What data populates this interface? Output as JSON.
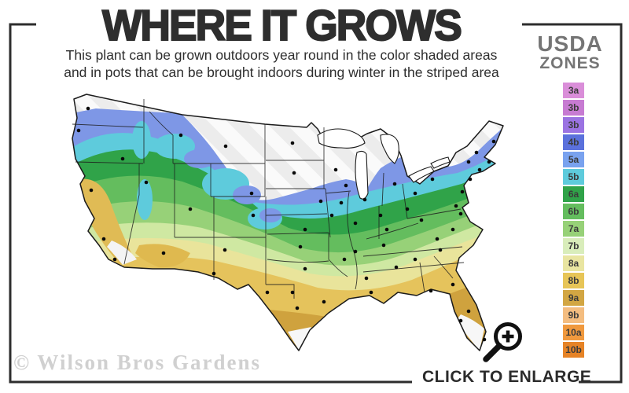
{
  "header": {
    "title": "WHERE IT GROWS",
    "subtitle_line1": "This plant can be grown outdoors year round in the color shaded areas",
    "subtitle_line2": "and in pots that can be brought indoors during winter in the striped area"
  },
  "legend": {
    "title_line1": "USDA",
    "title_line2": "ZONES",
    "zones": [
      {
        "label": "3a",
        "color": "#da8ed9"
      },
      {
        "label": "3b",
        "color": "#c77bd2"
      },
      {
        "label": "3b",
        "color": "#9b73e2"
      },
      {
        "label": "4b",
        "color": "#5b71dc"
      },
      {
        "label": "5a",
        "color": "#79a2ef"
      },
      {
        "label": "5b",
        "color": "#5ecbdc"
      },
      {
        "label": "6a",
        "color": "#30a349"
      },
      {
        "label": "6b",
        "color": "#64bd5e"
      },
      {
        "label": "7a",
        "color": "#97d178"
      },
      {
        "label": "7b",
        "color": "#d9edbb"
      },
      {
        "label": "8a",
        "color": "#e9e5a1"
      },
      {
        "label": "8b",
        "color": "#e7c557"
      },
      {
        "label": "9a",
        "color": "#d2a643"
      },
      {
        "label": "9b",
        "color": "#f4bd80"
      },
      {
        "label": "10a",
        "color": "#f0993e"
      },
      {
        "label": "10b",
        "color": "#e68326"
      }
    ]
  },
  "map": {
    "band_colors": {
      "striped_too_cold": "#efefef",
      "blue": "#7e97e6",
      "cyan": "#5ecbdc",
      "green": "#30a349",
      "mid_green": "#64bd5e",
      "light_green": "#97d178",
      "pale_green": "#cfe8a2",
      "pale_yellow": "#e9e49b",
      "gold": "#e5c35c",
      "dark_gold": "#cfa23e"
    }
  },
  "footer": {
    "watermark": "© Wilson Bros Gardens",
    "enlarge_label": "CLICK TO ENLARGE"
  }
}
